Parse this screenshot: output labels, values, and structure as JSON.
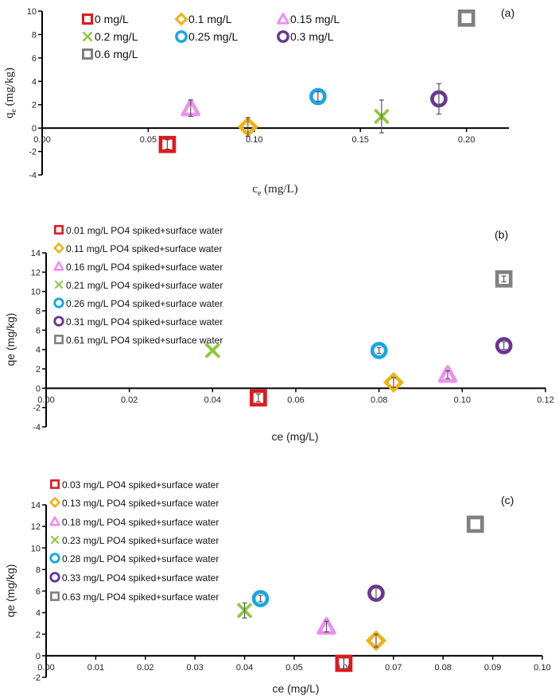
{
  "colors": {
    "s0": "#e0191e",
    "s1": "#f0b216",
    "s2": "#ee8ef0",
    "s3": "#8cc83c",
    "s4": "#18a6e6",
    "s5": "#6c3493",
    "s6": "#808080",
    "errbar": "#555555"
  },
  "chart_data": [
    {
      "type": "scatter",
      "panel_label": "(a)",
      "xlabel_main": "c",
      "xlabel_sub": "e",
      "xlabel_unit": " (mg/L)",
      "ylabel_main": "q",
      "ylabel_sub": "e",
      "ylabel_unit": " (mg/kg)",
      "xlim": [
        0,
        0.22
      ],
      "ylim": [
        -4,
        10
      ],
      "xticks": [
        0,
        0.05,
        0.1,
        0.15,
        0.2
      ],
      "xtick_labels": [
        "0.00",
        "0.05",
        "0.10",
        "0.15",
        "0.20"
      ],
      "yticks": [
        -4,
        -2,
        0,
        2,
        4,
        6,
        8,
        10
      ],
      "ytick_labels": [
        "-4",
        "-2",
        "0",
        "2",
        "4",
        "6",
        "8",
        "10"
      ],
      "legend_columns": 3,
      "series": [
        {
          "name": "0 mg/L",
          "marker": "square",
          "color_key": "s0",
          "x": 0.059,
          "y": -1.4,
          "err": 0.4
        },
        {
          "name": "0.1 mg/L",
          "marker": "diamond",
          "color_key": "s1",
          "x": 0.097,
          "y": 0.1,
          "err": 0.8
        },
        {
          "name": "0.15 mg/L",
          "marker": "triangle",
          "color_key": "s2",
          "x": 0.07,
          "y": 1.7,
          "err": 0.7
        },
        {
          "name": "0.2 mg/L",
          "marker": "cross",
          "color_key": "s3",
          "x": 0.16,
          "y": 1.0,
          "err": 1.4
        },
        {
          "name": "0.25 mg/L",
          "marker": "circle",
          "color_key": "s4",
          "x": 0.13,
          "y": 2.7,
          "err": 0.4
        },
        {
          "name": "0.3 mg/L",
          "marker": "circle",
          "color_key": "s5",
          "x": 0.187,
          "y": 2.5,
          "err": 1.3
        },
        {
          "name": "0.6 mg/L",
          "marker": "square",
          "color_key": "s6",
          "x": 0.2,
          "y": 9.4,
          "err": 0
        }
      ]
    },
    {
      "type": "scatter",
      "panel_label": "(b)",
      "xlabel_main": "ce (mg/L)",
      "ylabel_main": "qe (mg/kg)",
      "xlim": [
        0,
        0.12
      ],
      "ylim": [
        -4,
        14
      ],
      "xticks": [
        0,
        0.02,
        0.04,
        0.06,
        0.08,
        0.1,
        0.12
      ],
      "xtick_labels": [
        "0.00",
        "0.02",
        "0.04",
        "0.06",
        "0.08",
        "0.10",
        "0.12"
      ],
      "yticks": [
        -4,
        -2,
        0,
        2,
        4,
        6,
        8,
        10,
        12,
        14
      ],
      "ytick_labels": [
        "-4",
        "-2",
        "0",
        "2",
        "4",
        "6",
        "8",
        "10",
        "12",
        "14"
      ],
      "legend_columns": 1,
      "series": [
        {
          "name": "0.01 mg/L PO4 spiked+surface water",
          "marker": "square",
          "color_key": "s0",
          "x": 0.051,
          "y": -1.0,
          "err": 0.4
        },
        {
          "name": "0.11 mg/L PO4 spiked+surface water",
          "marker": "diamond",
          "color_key": "s1",
          "x": 0.0835,
          "y": 0.6,
          "err": 0.5
        },
        {
          "name": "0.16 mg/L PO4 spiked+surface water",
          "marker": "triangle",
          "color_key": "s2",
          "x": 0.0965,
          "y": 1.4,
          "err": 0.4
        },
        {
          "name": "0.21 mg/L PO4 spiked+surface water",
          "marker": "cross",
          "color_key": "s3",
          "x": 0.04,
          "y": 3.9,
          "err": 0
        },
        {
          "name": "0.26 mg/L PO4 spiked+surface water",
          "marker": "circle",
          "color_key": "s4",
          "x": 0.08,
          "y": 3.9,
          "err": 0.3
        },
        {
          "name": "0.31 mg/L PO4 spiked+surface water",
          "marker": "circle",
          "color_key": "s5",
          "x": 0.11,
          "y": 4.4,
          "err": 0.4
        },
        {
          "name": "0.61 mg/L PO4 spiked+surface water",
          "marker": "square",
          "color_key": "s6",
          "x": 0.11,
          "y": 11.3,
          "err": 0.3
        }
      ]
    },
    {
      "type": "scatter",
      "panel_label": "(c)",
      "xlabel_main": "ce (mg/L)",
      "ylabel_main": "qe (mg/kg)",
      "xlim": [
        0,
        0.1
      ],
      "ylim": [
        -2,
        14
      ],
      "xticks": [
        0,
        0.01,
        0.02,
        0.03,
        0.04,
        0.05,
        0.06,
        0.07,
        0.08,
        0.09,
        0.1
      ],
      "xtick_labels": [
        "0.00",
        "0.01",
        "0.02",
        "0.03",
        "0.04",
        "0.05",
        "0.06",
        "0.07",
        "0.08",
        "0.09",
        "0.10"
      ],
      "yticks": [
        -2,
        0,
        2,
        4,
        6,
        8,
        10,
        12,
        14
      ],
      "ytick_labels": [
        "-2",
        "0",
        "2",
        "4",
        "6",
        "8",
        "10",
        "12",
        "14"
      ],
      "legend_columns": 1,
      "series": [
        {
          "name": "0.03 mg/L PO4 spiked+surface water",
          "marker": "square",
          "color_key": "s0",
          "x": 0.06,
          "y": -0.7,
          "err": 0.5
        },
        {
          "name": "0.13 mg/L PO4 spiked+surface water",
          "marker": "diamond",
          "color_key": "s1",
          "x": 0.0665,
          "y": 1.4,
          "err": 0.6
        },
        {
          "name": "0.18 mg/L PO4 spiked+surface water",
          "marker": "triangle",
          "color_key": "s2",
          "x": 0.0565,
          "y": 2.7,
          "err": 0.5
        },
        {
          "name": "0.23 mg/L PO4 spiked+surface water",
          "marker": "cross",
          "color_key": "s3",
          "x": 0.04,
          "y": 4.2,
          "err": 0.7
        },
        {
          "name": "0.28 mg/L PO4 spiked+surface water",
          "marker": "circle",
          "color_key": "s4",
          "x": 0.0432,
          "y": 5.3,
          "err": 0.3
        },
        {
          "name": "0.33 mg/L PO4 spiked+surface water",
          "marker": "circle",
          "color_key": "s5",
          "x": 0.0665,
          "y": 5.8,
          "err": 0.6
        },
        {
          "name": "0.63 mg/L PO4 spiked+surface water",
          "marker": "square",
          "color_key": "s6",
          "x": 0.0865,
          "y": 12.2,
          "err": 0
        }
      ]
    }
  ]
}
